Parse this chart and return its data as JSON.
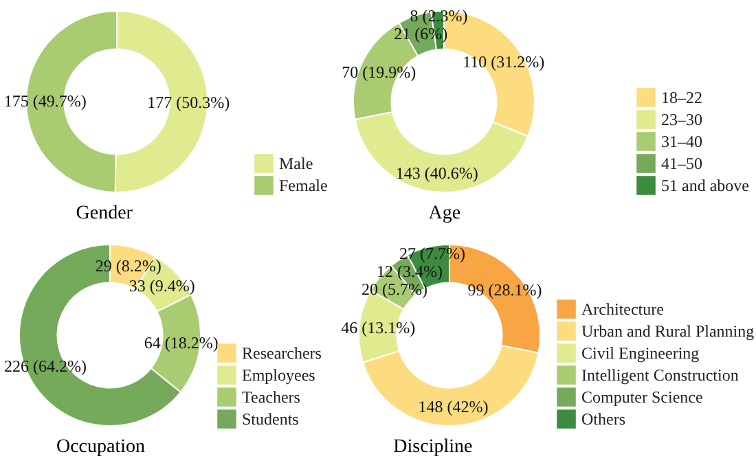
{
  "chart_data": [
    {
      "type": "donut",
      "title": "Gender",
      "categories": [
        "Male",
        "Female"
      ],
      "values": [
        177,
        175
      ],
      "colors": [
        "#e0ea8f",
        "#a9cb72"
      ],
      "value_labels": [
        "177 (50.3%)",
        "175 (49.7%)"
      ],
      "legend": "bottom right"
    },
    {
      "type": "donut",
      "title": "Age",
      "categories": [
        "18–22",
        "23–30",
        "31–40",
        "41–50",
        "51 and above"
      ],
      "values": [
        110,
        143,
        70,
        21,
        8
      ],
      "colors": [
        "#fddc80",
        "#e0ea8f",
        "#a9cb72",
        "#74aa59",
        "#3d8b3e"
      ],
      "value_labels": [
        "110 (31.2%)",
        "143 (40.6%)",
        "70 (19.9%)",
        "21 (6%)",
        "8 (2.3%)"
      ],
      "legend": "bottom right"
    },
    {
      "type": "donut",
      "title": "Occupation",
      "categories": [
        "Researchers",
        "Employees",
        "Teachers",
        "Students"
      ],
      "values": [
        29,
        33,
        64,
        226
      ],
      "colors": [
        "#fddc80",
        "#e0ea8f",
        "#a9cb72",
        "#74aa59"
      ],
      "value_labels": [
        "29 (8.2%)",
        "33 (9.4%)",
        "64 (18.2%)",
        "226 (64.2%)"
      ],
      "legend": "bottom right"
    },
    {
      "type": "donut",
      "title": "Discipline",
      "categories": [
        "Architecture",
        "Urban and Rural Planning",
        "Civil Engineering",
        "Intelligent Construction",
        "Computer Science",
        "Others"
      ],
      "values": [
        99,
        148,
        46,
        20,
        12,
        27
      ],
      "colors": [
        "#f8a544",
        "#fddc80",
        "#e0ea8f",
        "#a9cb72",
        "#74aa59",
        "#3d8b3e"
      ],
      "value_labels": [
        "99 (28.1%)",
        "148 (42%)",
        "46 (13.1%)",
        "20 (5.7%)",
        "12 (3.4%)",
        "27 (7.7%)"
      ],
      "legend": "bottom right"
    }
  ]
}
